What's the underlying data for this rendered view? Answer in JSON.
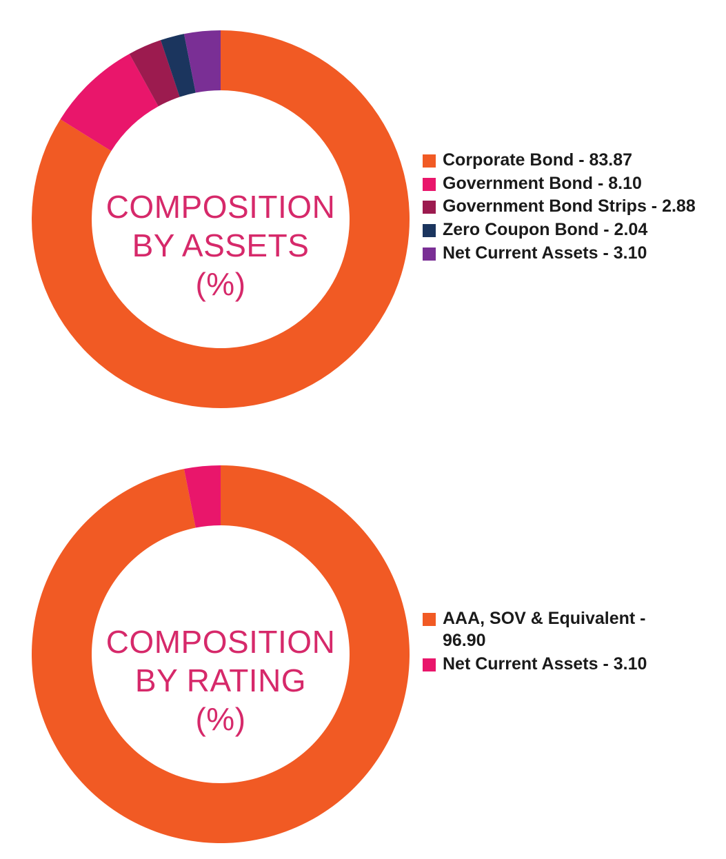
{
  "chart_data": [
    {
      "type": "pie",
      "variant": "donut",
      "center_label_lines": [
        "COMPOSITION",
        "BY ASSETS",
        "(%)"
      ],
      "categories": [
        "Corporate Bond",
        "Government Bond",
        "Government Bond Strips",
        "Zero Coupon Bond",
        "Net Current Assets"
      ],
      "values": [
        83.87,
        8.1,
        2.88,
        2.04,
        3.1
      ],
      "colors": [
        "#f15a24",
        "#e9166b",
        "#9c1b4f",
        "#1b355e",
        "#7a2f95"
      ],
      "legend_labels": [
        "Corporate Bond - 83.87",
        "Government Bond - 8.10",
        "Government Bond Strips - 2.88",
        "Zero Coupon Bond - 2.04",
        "Net Current Assets - 3.10"
      ],
      "legend": "right"
    },
    {
      "type": "pie",
      "variant": "donut",
      "center_label_lines": [
        "COMPOSITION",
        "BY RATING",
        "(%)"
      ],
      "categories": [
        "AAA, SOV & Equivalent",
        "Net Current Assets"
      ],
      "values": [
        96.9,
        3.1
      ],
      "colors": [
        "#f15a24",
        "#e9166b"
      ],
      "legend_labels": [
        "AAA, SOV & Equivalent - 96.90",
        "Net Current Assets - 3.10"
      ],
      "legend": "right"
    }
  ]
}
